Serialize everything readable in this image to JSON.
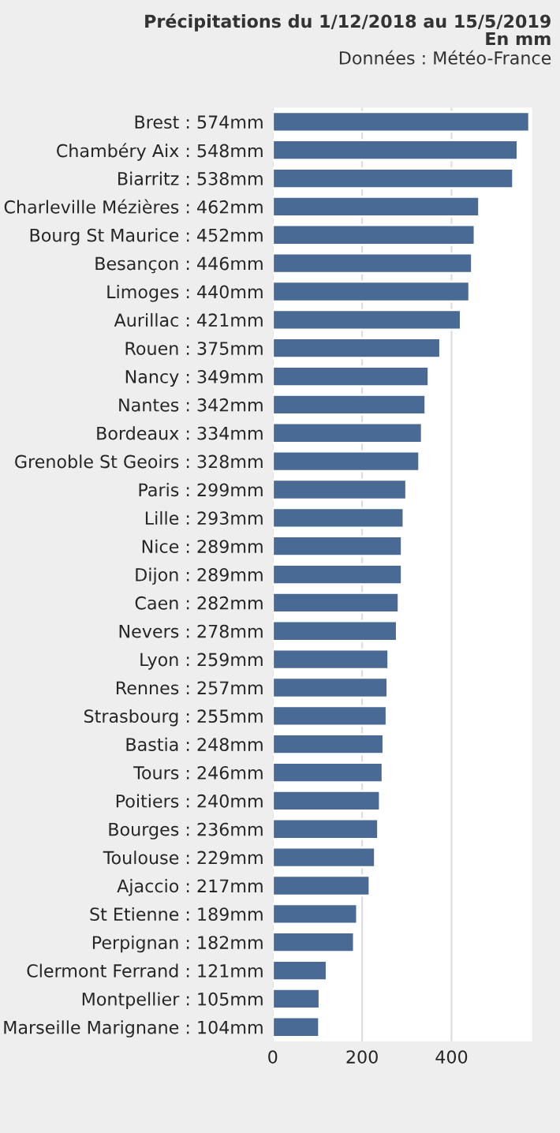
{
  "chart_data": {
    "type": "bar",
    "orientation": "horizontal",
    "title": "Précipitations du 1/12/2018 au 15/5/2019",
    "subtitle": "En mm",
    "annotations": [
      "Données : Météo-France"
    ],
    "categories": [
      "Brest : 574mm",
      "Chambéry Aix : 548mm",
      "Biarritz : 538mm",
      "Charleville Mézières : 462mm",
      "Bourg St Maurice : 452mm",
      "Besançon : 446mm",
      "Limoges : 440mm",
      "Aurillac : 421mm",
      "Rouen : 375mm",
      "Nancy : 349mm",
      "Nantes : 342mm",
      "Bordeaux : 334mm",
      "Grenoble St Geoirs : 328mm",
      "Paris : 299mm",
      "Lille : 293mm",
      "Nice : 289mm",
      "Dijon : 289mm",
      "Caen : 282mm",
      "Nevers : 278mm",
      "Lyon : 259mm",
      "Rennes : 257mm",
      "Strasbourg : 255mm",
      "Bastia : 248mm",
      "Tours : 246mm",
      "Poitiers : 240mm",
      "Bourges : 236mm",
      "Toulouse : 229mm",
      "Ajaccio : 217mm",
      "St Etienne : 189mm",
      "Perpignan : 182mm",
      "Clermont Ferrand : 121mm",
      "Montpellier : 105mm",
      "Marseille Marignane : 104mm"
    ],
    "values": [
      574,
      548,
      538,
      462,
      452,
      446,
      440,
      421,
      375,
      349,
      342,
      334,
      328,
      299,
      293,
      289,
      289,
      282,
      278,
      259,
      257,
      255,
      248,
      246,
      240,
      236,
      229,
      217,
      189,
      182,
      121,
      105,
      104
    ],
    "color": "#4a6a96",
    "xlim": [
      0,
      580
    ],
    "xticks": [
      0,
      200,
      400
    ],
    "grid": "x",
    "legend": false
  }
}
